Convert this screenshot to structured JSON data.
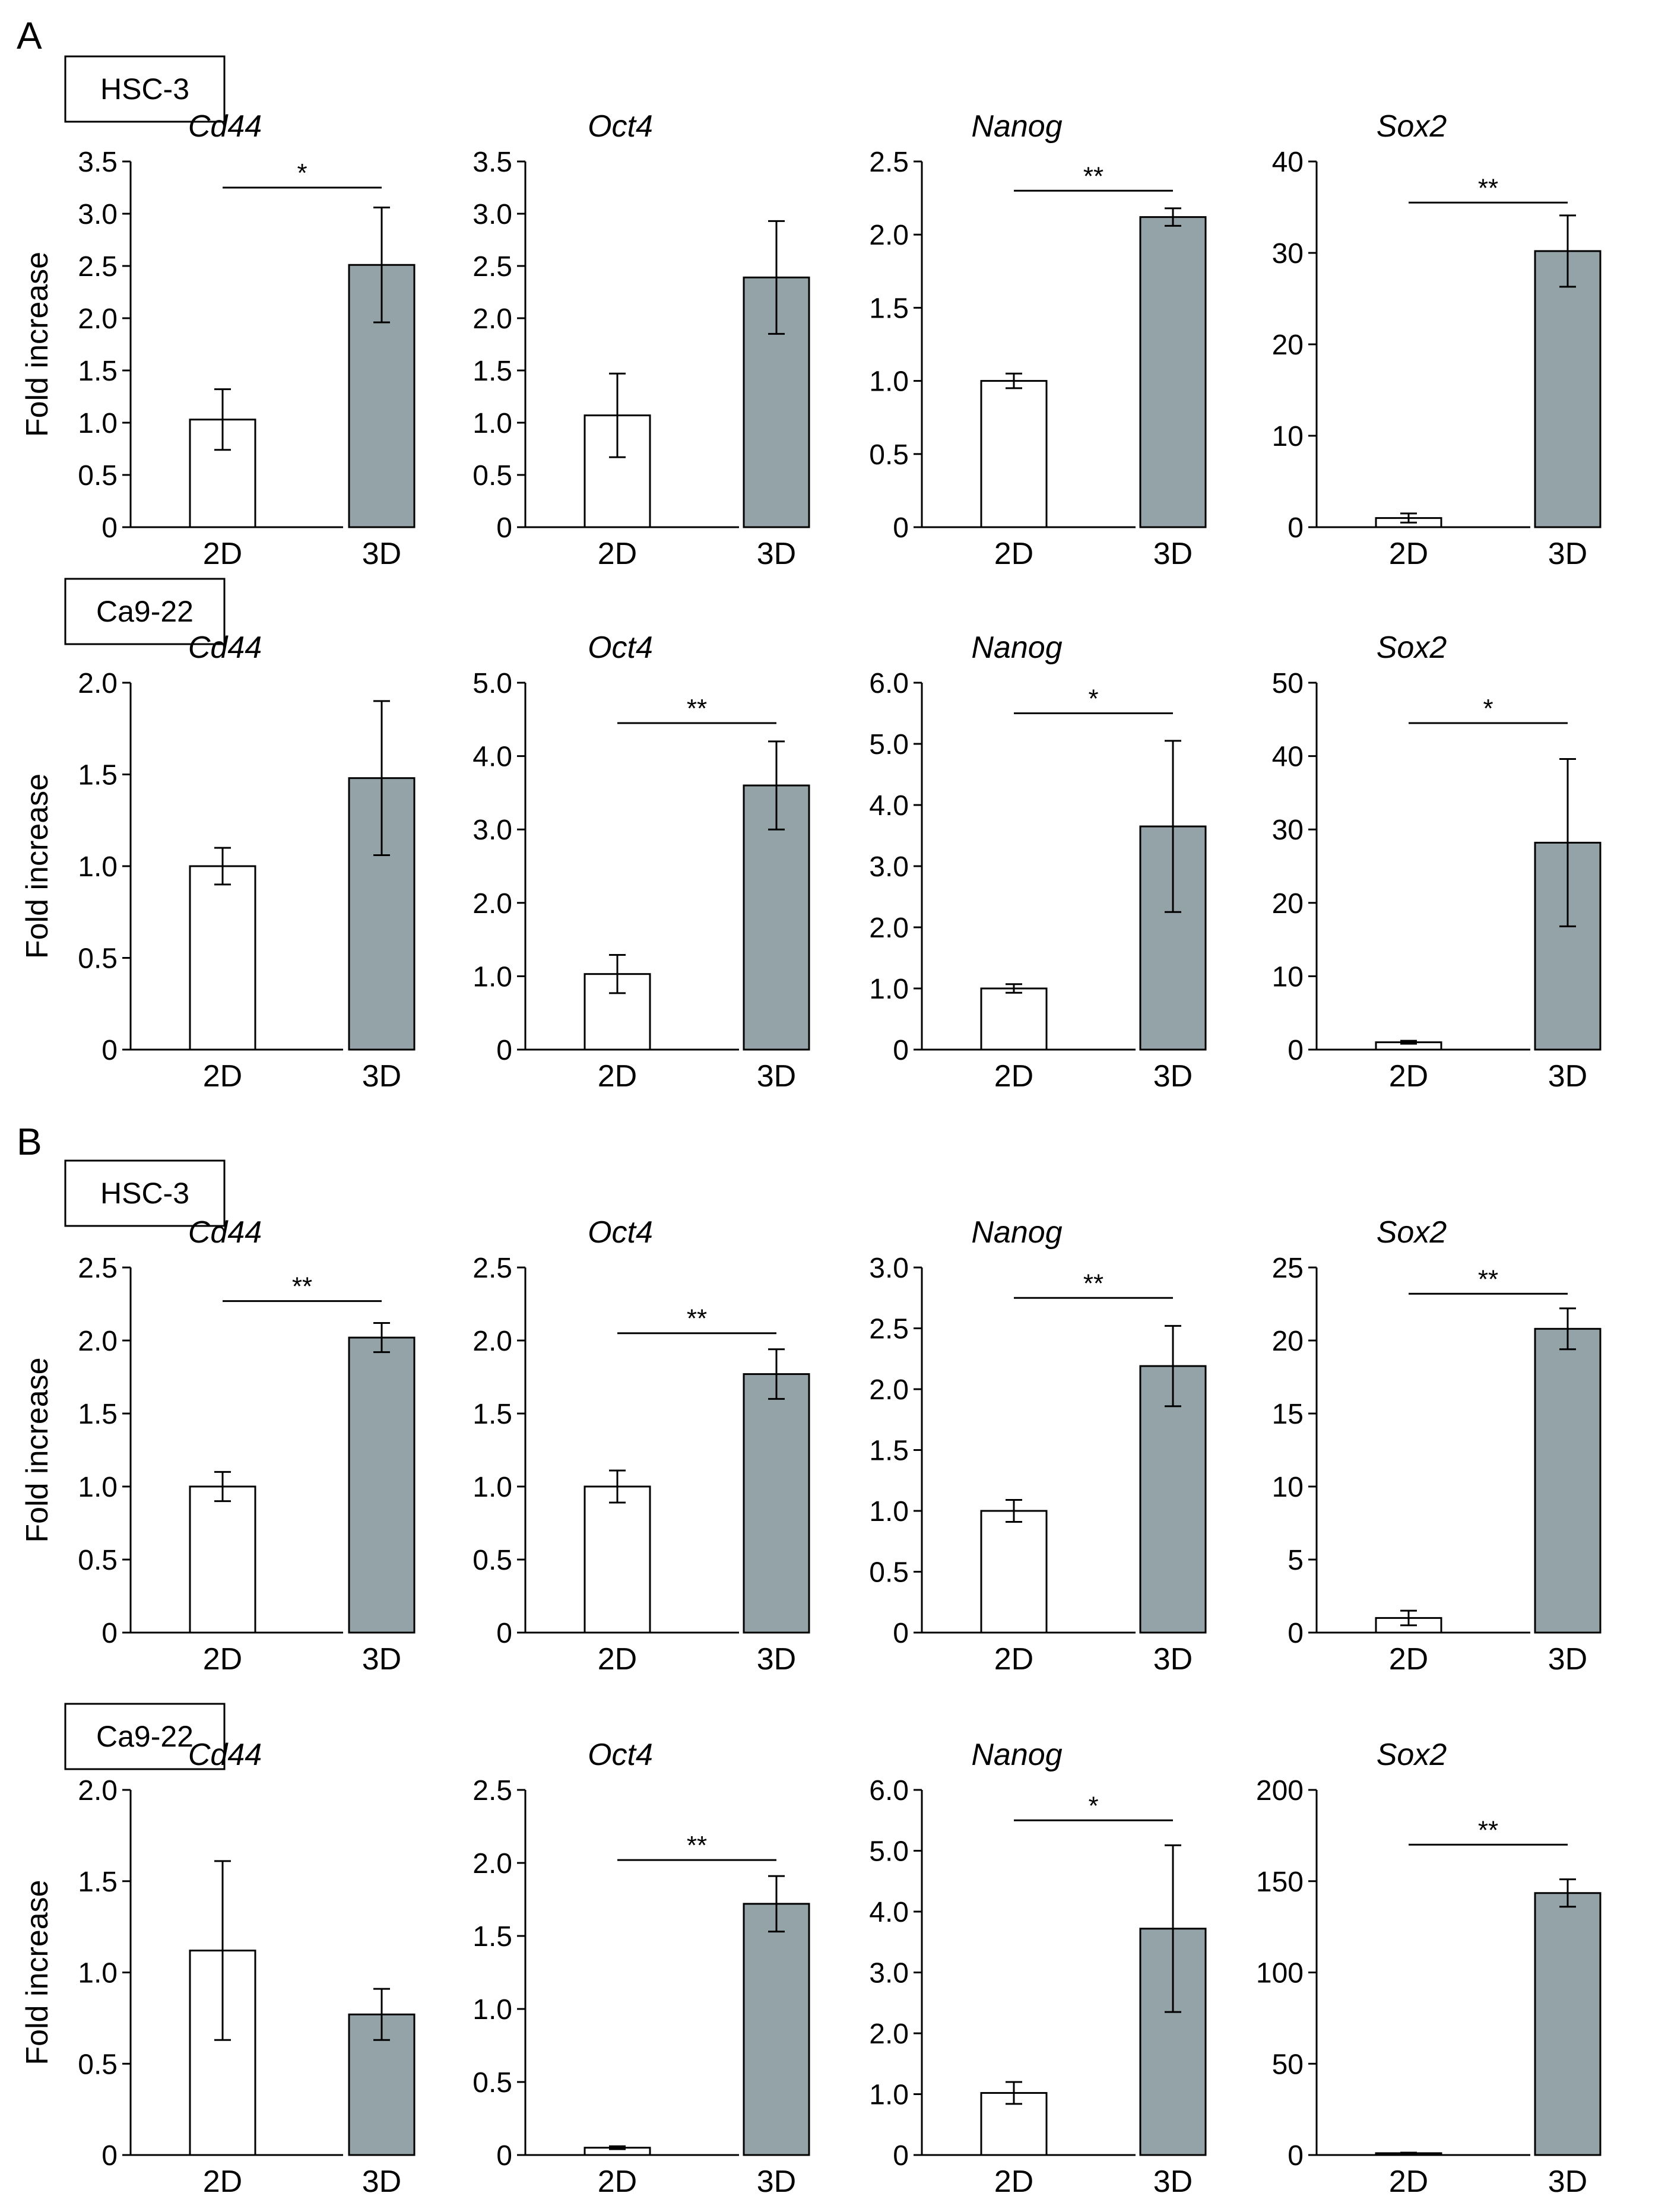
{
  "figure": {
    "panels": [
      {
        "letter": "A",
        "rows": [
          {
            "cell_line": "HSC-3",
            "ylabel": "Fold increase",
            "charts": [
              {
                "type": "bar",
                "title": "Cd44",
                "categories": [
                  "2D",
                  "3D"
                ],
                "values": [
                  1.03,
                  2.51
                ],
                "errors": [
                  0.29,
                  0.55
                ],
                "ylim": [
                  0,
                  3.5
                ],
                "yticks": [
                  "0",
                  "0.5",
                  "1.0",
                  "1.5",
                  "2.0",
                  "2.5",
                  "3.0",
                  "3.5"
                ],
                "significance": "*",
                "sig_y": 3.25,
                "colors": [
                  "#ffffff",
                  "#94a3a8"
                ]
              },
              {
                "type": "bar",
                "title": "Oct4",
                "categories": [
                  "2D",
                  "3D"
                ],
                "values": [
                  1.07,
                  2.39
                ],
                "errors": [
                  0.4,
                  0.54
                ],
                "ylim": [
                  0,
                  3.5
                ],
                "yticks": [
                  "0",
                  "0.5",
                  "1.0",
                  "1.5",
                  "2.0",
                  "2.5",
                  "3.0",
                  "3.5"
                ],
                "significance": "",
                "sig_y": null,
                "colors": [
                  "#ffffff",
                  "#94a3a8"
                ]
              },
              {
                "type": "bar",
                "title": "Nanog",
                "categories": [
                  "2D",
                  "3D"
                ],
                "values": [
                  1.0,
                  2.12
                ],
                "errors": [
                  0.05,
                  0.06
                ],
                "ylim": [
                  0,
                  2.5
                ],
                "yticks": [
                  "0",
                  "0.5",
                  "1.0",
                  "1.5",
                  "2.0",
                  "2.5"
                ],
                "significance": "**",
                "sig_y": 2.3,
                "colors": [
                  "#ffffff",
                  "#94a3a8"
                ]
              },
              {
                "type": "bar",
                "title": "Sox2",
                "categories": [
                  "2D",
                  "3D"
                ],
                "values": [
                  1.0,
                  30.2
                ],
                "errors": [
                  0.5,
                  3.9
                ],
                "ylim": [
                  0,
                  40
                ],
                "yticks": [
                  "0",
                  "10",
                  "20",
                  "30",
                  "40"
                ],
                "significance": "**",
                "sig_y": 35.5,
                "colors": [
                  "#ffffff",
                  "#94a3a8"
                ]
              }
            ]
          },
          {
            "cell_line": "Ca9-22",
            "ylabel": "Fold increase",
            "charts": [
              {
                "type": "bar",
                "title": "Cd44",
                "categories": [
                  "2D",
                  "3D"
                ],
                "values": [
                  1.0,
                  1.48
                ],
                "errors": [
                  0.1,
                  0.42
                ],
                "ylim": [
                  0,
                  2.0
                ],
                "yticks": [
                  "0",
                  "0.5",
                  "1.0",
                  "1.5",
                  "2.0"
                ],
                "significance": "",
                "sig_y": null,
                "colors": [
                  "#ffffff",
                  "#94a3a8"
                ]
              },
              {
                "type": "bar",
                "title": "Oct4",
                "categories": [
                  "2D",
                  "3D"
                ],
                "values": [
                  1.03,
                  3.6
                ],
                "errors": [
                  0.26,
                  0.6
                ],
                "ylim": [
                  0,
                  5.0
                ],
                "yticks": [
                  "0",
                  "1.0",
                  "2.0",
                  "3.0",
                  "4.0",
                  "5.0"
                ],
                "significance": "**",
                "sig_y": 4.45,
                "colors": [
                  "#ffffff",
                  "#94a3a8"
                ]
              },
              {
                "type": "bar",
                "title": "Nanog",
                "categories": [
                  "2D",
                  "3D"
                ],
                "values": [
                  1.0,
                  3.65
                ],
                "errors": [
                  0.07,
                  1.4
                ],
                "ylim": [
                  0,
                  6.0
                ],
                "yticks": [
                  "0",
                  "1.0",
                  "2.0",
                  "3.0",
                  "4.0",
                  "5.0",
                  "6.0"
                ],
                "significance": "*",
                "sig_y": 5.5,
                "colors": [
                  "#ffffff",
                  "#94a3a8"
                ]
              },
              {
                "type": "bar",
                "title": "Sox2",
                "categories": [
                  "2D",
                  "3D"
                ],
                "values": [
                  1.0,
                  28.2
                ],
                "errors": [
                  0.2,
                  11.4
                ],
                "ylim": [
                  0,
                  50
                ],
                "yticks": [
                  "0",
                  "10",
                  "20",
                  "30",
                  "40",
                  "50"
                ],
                "significance": "*",
                "sig_y": 44.5,
                "colors": [
                  "#ffffff",
                  "#94a3a8"
                ]
              }
            ]
          }
        ]
      },
      {
        "letter": "B",
        "rows": [
          {
            "cell_line": "HSC-3",
            "ylabel": "Fold increase",
            "charts": [
              {
                "type": "bar",
                "title": "Cd44",
                "categories": [
                  "2D",
                  "3D"
                ],
                "values": [
                  1.0,
                  2.02
                ],
                "errors": [
                  0.1,
                  0.1
                ],
                "ylim": [
                  0,
                  2.5
                ],
                "yticks": [
                  "0",
                  "0.5",
                  "1.0",
                  "1.5",
                  "2.0",
                  "2.5"
                ],
                "significance": "**",
                "sig_y": 2.27,
                "colors": [
                  "#ffffff",
                  "#94a3a8"
                ]
              },
              {
                "type": "bar",
                "title": "Oct4",
                "categories": [
                  "2D",
                  "3D"
                ],
                "values": [
                  1.0,
                  1.77
                ],
                "errors": [
                  0.11,
                  0.17
                ],
                "ylim": [
                  0,
                  2.5
                ],
                "yticks": [
                  "0",
                  "0.5",
                  "1.0",
                  "1.5",
                  "2.0",
                  "2.5"
                ],
                "significance": "**",
                "sig_y": 2.05,
                "colors": [
                  "#ffffff",
                  "#94a3a8"
                ]
              },
              {
                "type": "bar",
                "title": "Nanog",
                "categories": [
                  "2D",
                  "3D"
                ],
                "values": [
                  1.0,
                  2.19
                ],
                "errors": [
                  0.09,
                  0.33
                ],
                "ylim": [
                  0,
                  3.0
                ],
                "yticks": [
                  "0",
                  "0.5",
                  "1.0",
                  "1.5",
                  "2.0",
                  "2.5",
                  "3.0"
                ],
                "significance": "**",
                "sig_y": 2.75,
                "colors": [
                  "#ffffff",
                  "#94a3a8"
                ]
              },
              {
                "type": "bar",
                "title": "Sox2",
                "categories": [
                  "2D",
                  "3D"
                ],
                "values": [
                  1.0,
                  20.8
                ],
                "errors": [
                  0.5,
                  1.4
                ],
                "ylim": [
                  0,
                  25
                ],
                "yticks": [
                  "0",
                  "5",
                  "10",
                  "15",
                  "20",
                  "25"
                ],
                "significance": "**",
                "sig_y": 23.2,
                "colors": [
                  "#ffffff",
                  "#94a3a8"
                ]
              }
            ]
          },
          {
            "cell_line": "Ca9-22",
            "ylabel": "Fold increase",
            "charts": [
              {
                "type": "bar",
                "title": "Cd44",
                "categories": [
                  "2D",
                  "3D"
                ],
                "values": [
                  1.12,
                  0.77
                ],
                "errors": [
                  0.49,
                  0.14
                ],
                "ylim": [
                  0,
                  2.0
                ],
                "yticks": [
                  "0",
                  "0.5",
                  "1.0",
                  "1.5",
                  "2.0"
                ],
                "significance": "",
                "sig_y": null,
                "colors": [
                  "#ffffff",
                  "#94a3a8"
                ]
              },
              {
                "type": "bar",
                "title": "Oct4",
                "categories": [
                  "2D",
                  "3D"
                ],
                "values": [
                  0.05,
                  1.72
                ],
                "errors": [
                  0.01,
                  0.19
                ],
                "ylim": [
                  0,
                  2.5
                ],
                "yticks": [
                  "0",
                  "0.5",
                  "1.0",
                  "1.5",
                  "2.0",
                  "2.5"
                ],
                "significance": "**",
                "sig_y": 2.02,
                "colors": [
                  "#ffffff",
                  "#94a3a8"
                ]
              },
              {
                "type": "bar",
                "title": "Nanog",
                "categories": [
                  "2D",
                  "3D"
                ],
                "values": [
                  1.02,
                  3.72
                ],
                "errors": [
                  0.18,
                  1.37
                ],
                "ylim": [
                  0,
                  6.0
                ],
                "yticks": [
                  "0",
                  "1.0",
                  "2.0",
                  "3.0",
                  "4.0",
                  "5.0",
                  "6.0"
                ],
                "significance": "*",
                "sig_y": 5.5,
                "colors": [
                  "#ffffff",
                  "#94a3a8"
                ]
              },
              {
                "type": "bar",
                "title": "Sox2",
                "categories": [
                  "2D",
                  "3D"
                ],
                "values": [
                  1.0,
                  143.5
                ],
                "errors": [
                  0.3,
                  7.5
                ],
                "ylim": [
                  0,
                  200
                ],
                "yticks": [
                  "0",
                  "50",
                  "100",
                  "150",
                  "200"
                ],
                "significance": "**",
                "sig_y": 170,
                "colors": [
                  "#ffffff",
                  "#94a3a8"
                ]
              }
            ]
          }
        ]
      }
    ]
  }
}
